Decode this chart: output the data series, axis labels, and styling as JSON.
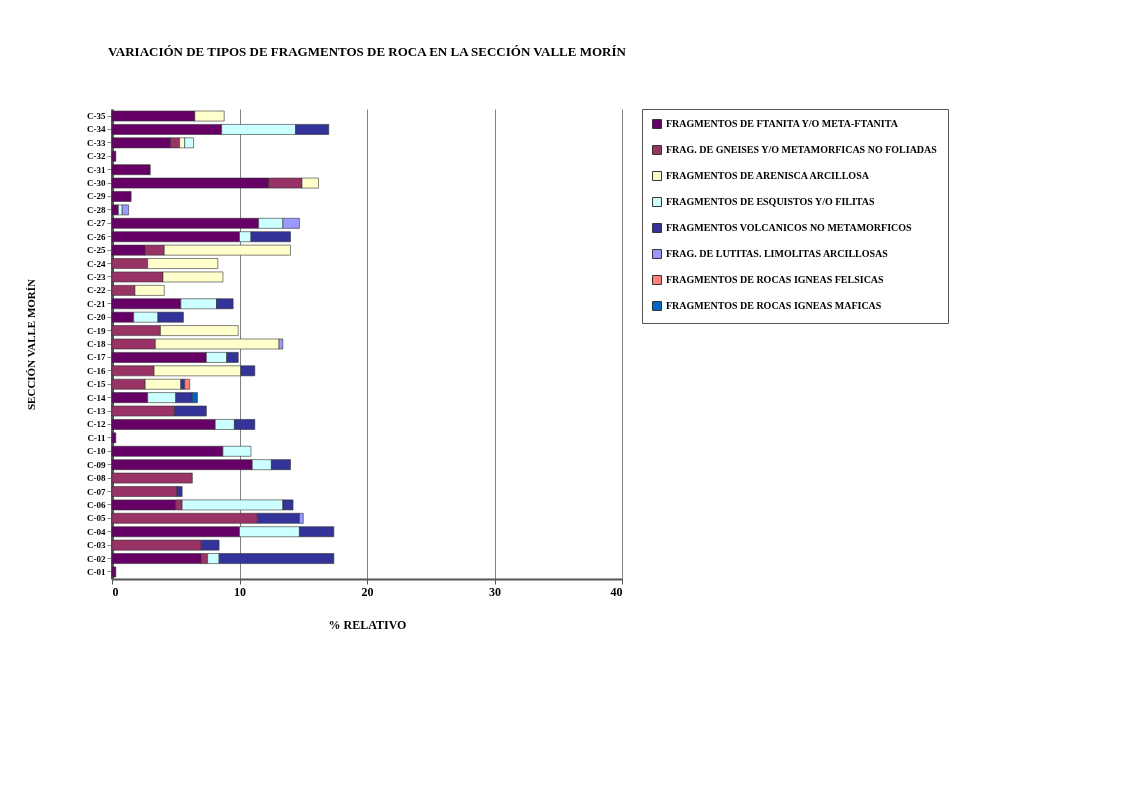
{
  "chart_data": {
    "type": "bar",
    "orientation": "horizontal",
    "stacked": true,
    "title": "VARIACIÓN DE TIPOS DE FRAGMENTOS DE ROCA EN LA SECCIÓN VALLE MORÍN",
    "xlabel": "% RELATIVO",
    "ylabel": "SECCIÓN VALLE MORÍN",
    "categories": [
      "C-35",
      "C-34",
      "C-33",
      "C-32",
      "C-31",
      "C-30",
      "C-29",
      "C-28",
      "C-27",
      "C-26",
      "C-25",
      "C-24",
      "C-23",
      "C-22",
      "C-21",
      "C-20",
      "C-19",
      "C-18",
      "C-17",
      "C-16",
      "C-15",
      "C-14",
      "C-13",
      "C-12",
      "C-11",
      "C-10",
      "C-09",
      "C-08",
      "C-07",
      "C-06",
      "C-05",
      "C-04",
      "C-03",
      "C-02",
      "C-01"
    ],
    "series": [
      {
        "name": "FRAGMENTOS DE FTANITA Y/O META-FTANITA",
        "color": "#660066",
        "values": [
          6.5,
          8.6,
          4.6,
          0.3,
          3.0,
          12.3,
          1.5,
          0.5,
          11.5,
          10.0,
          2.6,
          null,
          null,
          null,
          5.4,
          1.7,
          null,
          null,
          7.4,
          null,
          null,
          2.8,
          null,
          8.1,
          0.3,
          8.7,
          11.0,
          null,
          null,
          5.0,
          null,
          10.0,
          null,
          7.0,
          0.3
        ]
      },
      {
        "name": "FRAG. DE GNEISES Y/O METAMORFICAS NO FOLIADAS",
        "color": "#993366",
        "values": [
          null,
          null,
          0.7,
          null,
          null,
          2.6,
          null,
          null,
          null,
          null,
          1.5,
          2.8,
          4.0,
          1.8,
          null,
          null,
          3.8,
          3.4,
          null,
          3.3,
          2.6,
          null,
          4.9,
          null,
          null,
          null,
          null,
          6.3,
          5.1,
          0.5,
          11.4,
          null,
          7.0,
          0.5,
          null
        ]
      },
      {
        "name": "FRAGMENTOS DE ARENISCA ARCILLOSA",
        "color": "#ffffcc",
        "values": [
          2.3,
          null,
          0.4,
          null,
          null,
          1.3,
          null,
          null,
          null,
          null,
          9.9,
          5.5,
          4.7,
          2.3,
          null,
          null,
          6.1,
          9.7,
          null,
          6.8,
          2.8,
          null,
          null,
          null,
          null,
          null,
          null,
          null,
          null,
          null,
          null,
          null,
          null,
          null,
          null
        ]
      },
      {
        "name": "FRAGMENTOS DE ESQUISTOS Y/O FILITAS",
        "color": "#ccffff",
        "values": [
          null,
          5.8,
          0.7,
          null,
          null,
          null,
          null,
          0.3,
          1.9,
          0.9,
          null,
          null,
          null,
          null,
          2.8,
          1.9,
          null,
          null,
          1.6,
          null,
          null,
          2.2,
          null,
          1.5,
          null,
          2.2,
          1.5,
          null,
          null,
          7.9,
          null,
          4.7,
          null,
          0.9,
          null
        ]
      },
      {
        "name": "FRAGMENTOS VOLCANICOS NO METAMORFICOS",
        "color": "#333399",
        "values": [
          null,
          2.6,
          null,
          null,
          null,
          null,
          null,
          null,
          null,
          3.1,
          null,
          null,
          null,
          null,
          1.3,
          2.0,
          null,
          null,
          0.9,
          1.1,
          0.3,
          1.3,
          2.5,
          1.6,
          null,
          null,
          1.5,
          null,
          0.4,
          0.8,
          3.3,
          2.7,
          1.4,
          9.0,
          null
        ]
      },
      {
        "name": "FRAG. DE LUTITAS. LIMOLITAS ARCILLOSAS",
        "color": "#9999ff",
        "values": [
          null,
          null,
          null,
          null,
          null,
          null,
          null,
          0.5,
          1.3,
          null,
          null,
          null,
          null,
          null,
          null,
          null,
          null,
          0.3,
          null,
          null,
          null,
          null,
          null,
          null,
          null,
          null,
          null,
          null,
          null,
          null,
          0.3,
          null,
          null,
          null,
          null
        ]
      },
      {
        "name": "FRAGMENTOS DE ROCAS IGNEAS FELSICAS",
        "color": "#ff8080",
        "values": [
          null,
          null,
          null,
          null,
          null,
          null,
          null,
          null,
          null,
          null,
          null,
          null,
          null,
          null,
          null,
          null,
          null,
          null,
          null,
          null,
          0.4,
          null,
          null,
          null,
          null,
          null,
          null,
          null,
          null,
          null,
          null,
          null,
          null,
          null,
          null
        ]
      },
      {
        "name": "FRAGMENTOS DE ROCAS IGNEAS MAFICAS",
        "color": "#0066cc",
        "values": [
          null,
          null,
          null,
          null,
          null,
          null,
          null,
          null,
          null,
          null,
          null,
          null,
          null,
          null,
          null,
          null,
          null,
          null,
          null,
          null,
          null,
          0.4,
          null,
          null,
          null,
          null,
          null,
          null,
          null,
          null,
          null,
          null,
          null,
          null,
          null
        ]
      }
    ],
    "xlim": [
      0,
      40
    ],
    "xticks": [
      0,
      10,
      20,
      30,
      40
    ],
    "grid": "x",
    "legend": "right"
  }
}
